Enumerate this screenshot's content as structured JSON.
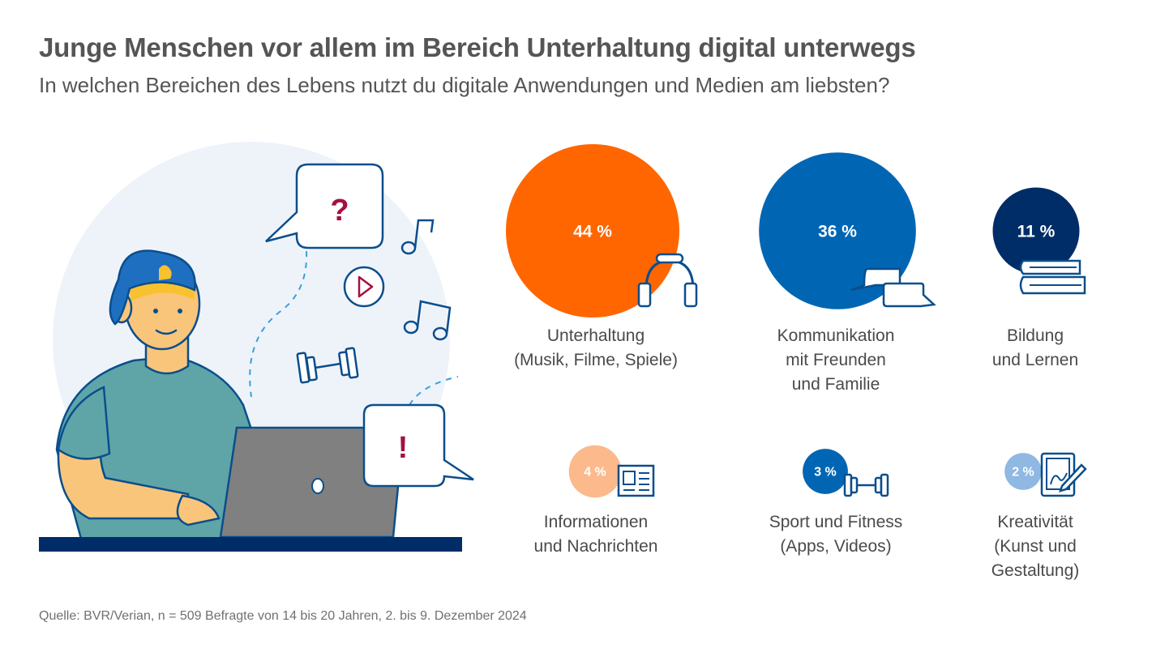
{
  "header": {
    "title": "Junge Menschen vor allem im Bereich Unterhaltung digital unterwegs",
    "subtitle": "In welchen Bereichen des Lebens nutzt du digitale Anwendungen und Medien am liebsten?"
  },
  "footer": {
    "source": "Quelle: BVR/Verian, n = 509 Befragte von 14 bis 20 Jahren, 2. bis 9. Dezember 2024"
  },
  "illustration": {
    "question_mark": "?",
    "exclamation_mark": "!"
  },
  "chart_data": {
    "type": "bubble",
    "unit": "%",
    "categories": [
      {
        "lines": [
          "Unterhaltung",
          "(Musik, Filme, Spiele)"
        ],
        "value": 44,
        "value_label": "44 %",
        "color": "#ff6600",
        "icon": "headphones-icon"
      },
      {
        "lines": [
          "Kommunikation",
          "mit Freunden",
          "und Familie"
        ],
        "value": 36,
        "value_label": "36 %",
        "color": "#0066b3",
        "icon": "chat-bubbles-icon"
      },
      {
        "lines": [
          "Bildung",
          "und Lernen"
        ],
        "value": 11,
        "value_label": "11 %",
        "color": "#002d67",
        "icon": "books-icon"
      },
      {
        "lines": [
          "Informationen",
          "und Nachrichten"
        ],
        "value": 4,
        "value_label": "4 %",
        "color": "#fbb98c",
        "icon": "newspaper-icon"
      },
      {
        "lines": [
          "Sport und Fitness",
          "(Apps, Videos)"
        ],
        "value": 3,
        "value_label": "3 %",
        "color": "#0066b3",
        "icon": "dumbbell-icon"
      },
      {
        "lines": [
          "Kreativität",
          "(Kunst und",
          "Gestaltung)"
        ],
        "value": 2,
        "value_label": "2 %",
        "color": "#8fb8e3",
        "icon": "drawing-tablet-icon"
      }
    ]
  }
}
